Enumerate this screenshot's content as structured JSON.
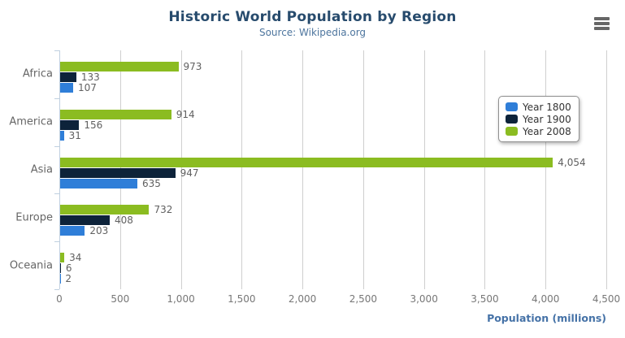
{
  "header": {
    "title": "Historic World Population by Region",
    "subtitle": "Source: Wikipedia.org"
  },
  "toolbar": {
    "menu_icon": "hamburger-icon"
  },
  "chart_data": {
    "type": "bar",
    "orientation": "horizontal",
    "title": "Historic World Population by Region",
    "subtitle": "Source: Wikipedia.org",
    "xlabel": "Population (millions)",
    "ylabel": "",
    "categories": [
      "Africa",
      "America",
      "Asia",
      "Europe",
      "Oceania"
    ],
    "series": [
      {
        "name": "Year 1800",
        "color": "#2f7ed8",
        "values": [
          107,
          31,
          635,
          203,
          2
        ]
      },
      {
        "name": "Year 1900",
        "color": "#0d233a",
        "values": [
          133,
          156,
          947,
          408,
          6
        ]
      },
      {
        "name": "Year 2008",
        "color": "#8bbc21",
        "values": [
          973,
          914,
          4054,
          732,
          34
        ]
      }
    ],
    "series_stack_order_top_to_bottom": [
      "Year 2008",
      "Year 1900",
      "Year 1800"
    ],
    "data_labels": [
      "107",
      "31",
      "635",
      "203",
      "2",
      "133",
      "156",
      "947",
      "408",
      "6",
      "973",
      "914",
      "4,054",
      "732",
      "34"
    ],
    "xlim": [
      0,
      4500
    ],
    "x_tick_interval": 500,
    "x_tick_labels": [
      "0",
      "500",
      "1,000",
      "1,500",
      "2,000",
      "2,500",
      "3,000",
      "3,500",
      "4,000",
      "4,500"
    ],
    "grid": "vertical",
    "legend_position": "right-middle",
    "legend_entries": [
      "Year 1800",
      "Year 1900",
      "Year 2008"
    ]
  },
  "colors": {
    "title": "#274b6d",
    "subtitle": "#4d759e",
    "axis_title": "#4572a7",
    "axis_labels": "#777777",
    "category_labels": "#666666",
    "data_labels": "#606060",
    "gridline": "#cfcfcf",
    "axis_line": "#c0d0e0",
    "legend_border": "#909090",
    "legend_text": "#333333",
    "menu_icon": "#666666",
    "background": "#ffffff",
    "series_year_1800": "#2f7ed8",
    "series_year_1900": "#0d233a",
    "series_year_2008": "#8bbc21"
  }
}
